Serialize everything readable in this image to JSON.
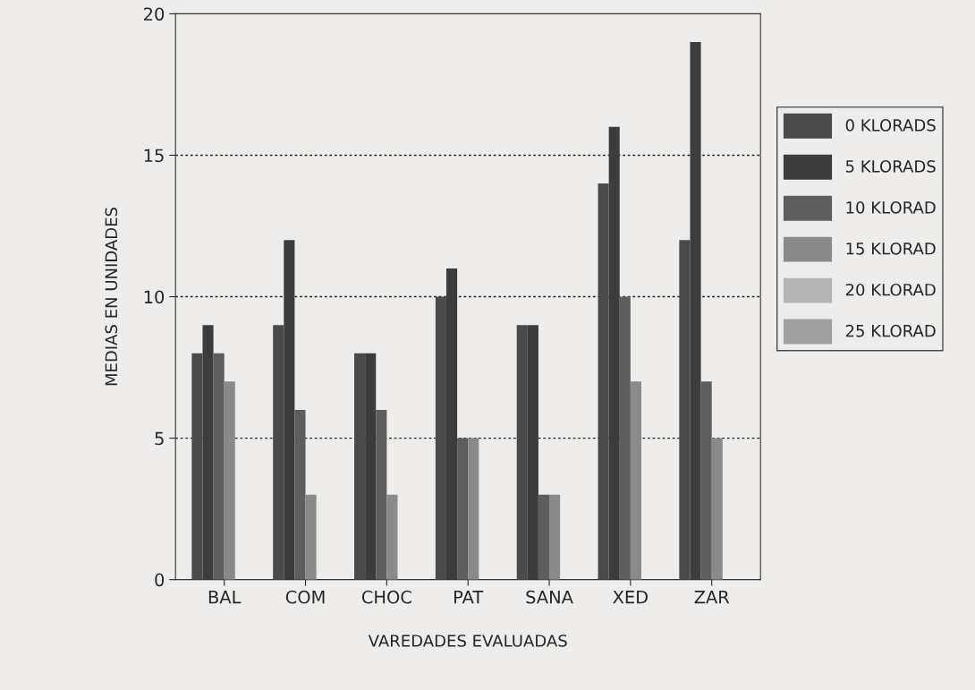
{
  "chart_data": {
    "type": "bar",
    "xlabel": "VAREDADES EVALUADAS",
    "ylabel": "MEDIAS EN UNIDADES",
    "categories": [
      "BAL",
      "COM",
      "CHOC",
      "PAT",
      "SANA",
      "XED",
      "ZAR"
    ],
    "series": [
      {
        "name": "0 KLORADS",
        "color": "#4a4a4a",
        "values": [
          8,
          9,
          8,
          10,
          9,
          14,
          12
        ]
      },
      {
        "name": "5 KLORADS",
        "color": "#3c3c3c",
        "values": [
          9,
          12,
          8,
          11,
          9,
          16,
          19
        ]
      },
      {
        "name": "10 KLORAD",
        "color": "#5e5e5e",
        "values": [
          8,
          6,
          6,
          5,
          3,
          10,
          7
        ]
      },
      {
        "name": "15 KLORAD",
        "color": "#8a8a8a",
        "values": [
          7,
          3,
          3,
          5,
          3,
          7,
          5
        ]
      },
      {
        "name": "20 KLORAD",
        "color": "#b4b4b4",
        "values": [
          0,
          0,
          0,
          0,
          0,
          0,
          0
        ]
      },
      {
        "name": "25 KLORAD",
        "color": "#a0a0a0",
        "values": [
          0,
          0,
          0,
          0,
          0,
          0,
          0
        ]
      }
    ],
    "ylim": [
      0,
      20
    ],
    "yticks": [
      0,
      5,
      10,
      15,
      20
    ],
    "grid": "y",
    "legend": "right"
  }
}
